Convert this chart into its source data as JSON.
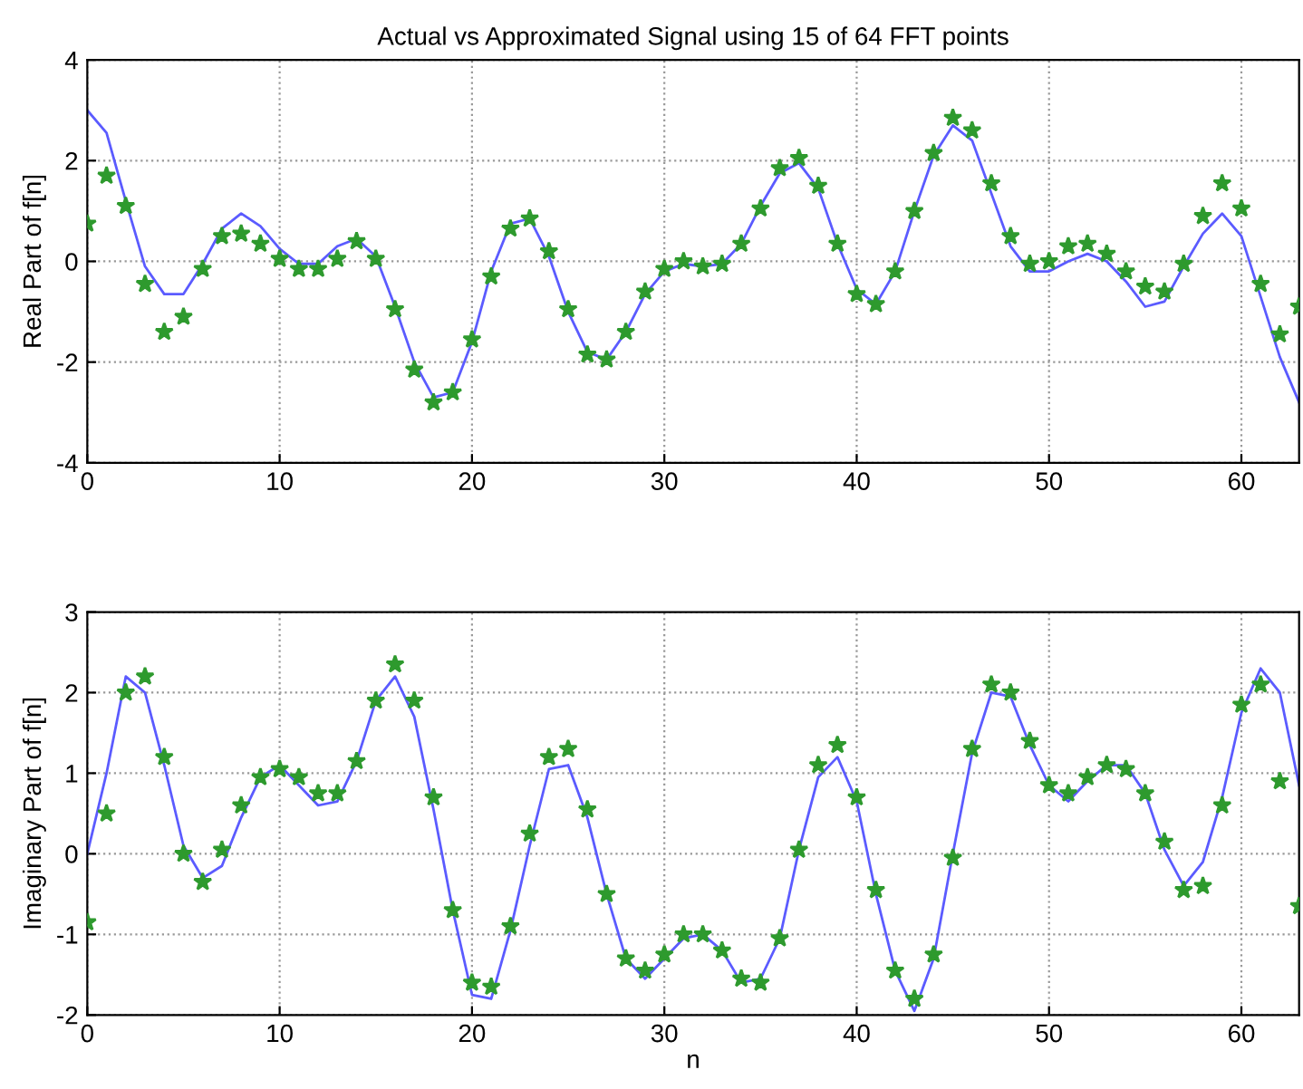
{
  "chart_data": [
    {
      "type": "line",
      "title": "Actual vs Approximated Signal using 15 of 64 FFT points",
      "ylabel": "Real Part of f[n]",
      "x": [
        0,
        1,
        2,
        3,
        4,
        5,
        6,
        7,
        8,
        9,
        10,
        11,
        12,
        13,
        14,
        15,
        16,
        17,
        18,
        19,
        20,
        21,
        22,
        23,
        24,
        25,
        26,
        27,
        28,
        29,
        30,
        31,
        32,
        33,
        34,
        35,
        36,
        37,
        38,
        39,
        40,
        41,
        42,
        43,
        44,
        45,
        46,
        47,
        48,
        49,
        50,
        51,
        52,
        53,
        54,
        55,
        56,
        57,
        58,
        59,
        60,
        61,
        62,
        63
      ],
      "xlim": [
        0,
        63
      ],
      "xticks": [
        0,
        10,
        20,
        30,
        40,
        50,
        60
      ],
      "ylim": [
        -4,
        4
      ],
      "yticks": [
        -4,
        -2,
        0,
        2,
        4
      ],
      "grid": true,
      "legend": false,
      "series": [
        {
          "color": "#5b5bff",
          "marker": "none",
          "line_style": "solid",
          "values": [
            3.0,
            2.55,
            1.2,
            -0.1,
            -0.65,
            -0.65,
            -0.05,
            0.65,
            0.95,
            0.7,
            0.25,
            -0.05,
            -0.05,
            0.3,
            0.45,
            0.1,
            -0.9,
            -2.0,
            -2.7,
            -2.6,
            -1.6,
            -0.2,
            0.75,
            0.85,
            0.1,
            -1.0,
            -1.8,
            -1.95,
            -1.4,
            -0.65,
            -0.2,
            -0.05,
            -0.1,
            -0.05,
            0.35,
            1.1,
            1.75,
            1.95,
            1.45,
            0.35,
            -0.55,
            -0.85,
            -0.2,
            1.0,
            2.1,
            2.7,
            2.4,
            1.35,
            0.3,
            -0.2,
            -0.2,
            0.0,
            0.15,
            0.0,
            -0.4,
            -0.9,
            -0.8,
            -0.1,
            0.55,
            0.95,
            0.5,
            -0.7,
            -1.9,
            -2.8
          ]
        },
        {
          "type": "scatter",
          "color": "#2e9a2e",
          "marker": "star",
          "values": [
            0.75,
            1.7,
            1.1,
            -0.45,
            -1.4,
            -1.1,
            -0.15,
            0.5,
            0.55,
            0.35,
            0.05,
            -0.15,
            -0.15,
            0.05,
            0.4,
            0.05,
            -0.95,
            -2.15,
            -2.8,
            -2.6,
            -1.55,
            -0.3,
            0.65,
            0.85,
            0.2,
            -0.95,
            -1.85,
            -1.95,
            -1.4,
            -0.6,
            -0.15,
            0.0,
            -0.1,
            -0.05,
            0.35,
            1.05,
            1.85,
            2.05,
            1.5,
            0.35,
            -0.65,
            -0.85,
            -0.2,
            1.0,
            2.15,
            2.85,
            2.6,
            1.55,
            0.5,
            -0.05,
            0.0,
            0.3,
            0.35,
            0.15,
            -0.2,
            -0.5,
            -0.6,
            -0.05,
            0.9,
            1.55,
            1.05,
            -0.45,
            -1.45,
            -0.9
          ]
        }
      ]
    },
    {
      "type": "line",
      "xlabel": "n",
      "ylabel": "Imaginary Part of f[n]",
      "x": [
        0,
        1,
        2,
        3,
        4,
        5,
        6,
        7,
        8,
        9,
        10,
        11,
        12,
        13,
        14,
        15,
        16,
        17,
        18,
        19,
        20,
        21,
        22,
        23,
        24,
        25,
        26,
        27,
        28,
        29,
        30,
        31,
        32,
        33,
        34,
        35,
        36,
        37,
        38,
        39,
        40,
        41,
        42,
        43,
        44,
        45,
        46,
        47,
        48,
        49,
        50,
        51,
        52,
        53,
        54,
        55,
        56,
        57,
        58,
        59,
        60,
        61,
        62,
        63
      ],
      "xlim": [
        0,
        63
      ],
      "xticks": [
        0,
        10,
        20,
        30,
        40,
        50,
        60
      ],
      "ylim": [
        -2,
        3
      ],
      "yticks": [
        -2,
        -1,
        0,
        1,
        2,
        3
      ],
      "grid": true,
      "legend": false,
      "series": [
        {
          "color": "#5b5bff",
          "marker": "none",
          "line_style": "solid",
          "values": [
            0.0,
            1.0,
            2.2,
            2.0,
            1.1,
            0.1,
            -0.3,
            -0.15,
            0.45,
            0.95,
            1.1,
            0.85,
            0.6,
            0.65,
            1.15,
            1.9,
            2.2,
            1.7,
            0.55,
            -0.7,
            -1.75,
            -1.8,
            -0.95,
            0.1,
            1.05,
            1.1,
            0.45,
            -0.5,
            -1.3,
            -1.55,
            -1.3,
            -1.05,
            -1.0,
            -1.2,
            -1.6,
            -1.55,
            -1.05,
            0.05,
            0.95,
            1.2,
            0.65,
            -0.5,
            -1.45,
            -1.95,
            -1.3,
            0.0,
            1.25,
            2.0,
            1.95,
            1.35,
            0.85,
            0.65,
            0.9,
            1.1,
            1.1,
            0.75,
            0.05,
            -0.4,
            -0.1,
            0.7,
            1.75,
            2.3,
            2.0,
            0.85
          ]
        },
        {
          "type": "scatter",
          "color": "#2e9a2e",
          "marker": "star",
          "values": [
            -0.85,
            0.5,
            2.0,
            2.2,
            1.2,
            0.0,
            -0.35,
            0.05,
            0.6,
            0.95,
            1.05,
            0.95,
            0.75,
            0.75,
            1.15,
            1.9,
            2.35,
            1.9,
            0.7,
            -0.7,
            -1.6,
            -1.65,
            -0.9,
            0.25,
            1.2,
            1.3,
            0.55,
            -0.5,
            -1.3,
            -1.45,
            -1.25,
            -1.0,
            -1.0,
            -1.2,
            -1.55,
            -1.6,
            -1.05,
            0.05,
            1.1,
            1.35,
            0.7,
            -0.45,
            -1.45,
            -1.8,
            -1.25,
            -0.05,
            1.3,
            2.1,
            2.0,
            1.4,
            0.85,
            0.75,
            0.95,
            1.1,
            1.05,
            0.75,
            0.15,
            -0.45,
            -0.4,
            0.6,
            1.85,
            2.1,
            0.9,
            -0.65
          ]
        }
      ]
    }
  ]
}
